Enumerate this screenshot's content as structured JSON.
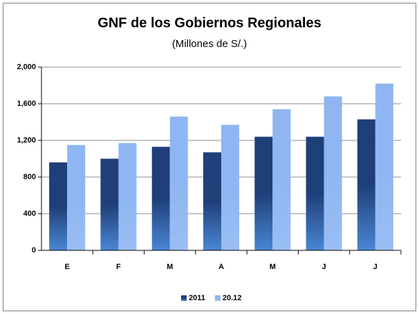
{
  "chart_data": {
    "type": "bar",
    "title": "GNF de los Gobiernos  Regionales",
    "subtitle": "(Millones de S/.)",
    "categories": [
      "E",
      "F",
      "M",
      "A",
      "M",
      "J",
      "J"
    ],
    "series": [
      {
        "name": "2011",
        "color": "#1f3f78",
        "values": [
          960,
          1000,
          1130,
          1070,
          1240,
          1240,
          1430
        ]
      },
      {
        "name": "20.12",
        "color": "#8fb6f2",
        "values": [
          1150,
          1170,
          1460,
          1370,
          1540,
          1680,
          1820
        ]
      }
    ],
    "ylim": [
      0,
      2000
    ],
    "yticks": [
      0,
      400,
      800,
      {
        "value": 1200,
        "label": "1,200"
      },
      {
        "value": 1600,
        "label": "1,600"
      },
      {
        "value": 2000,
        "label": "2,000"
      }
    ],
    "grid": true,
    "legend": "bottom"
  }
}
